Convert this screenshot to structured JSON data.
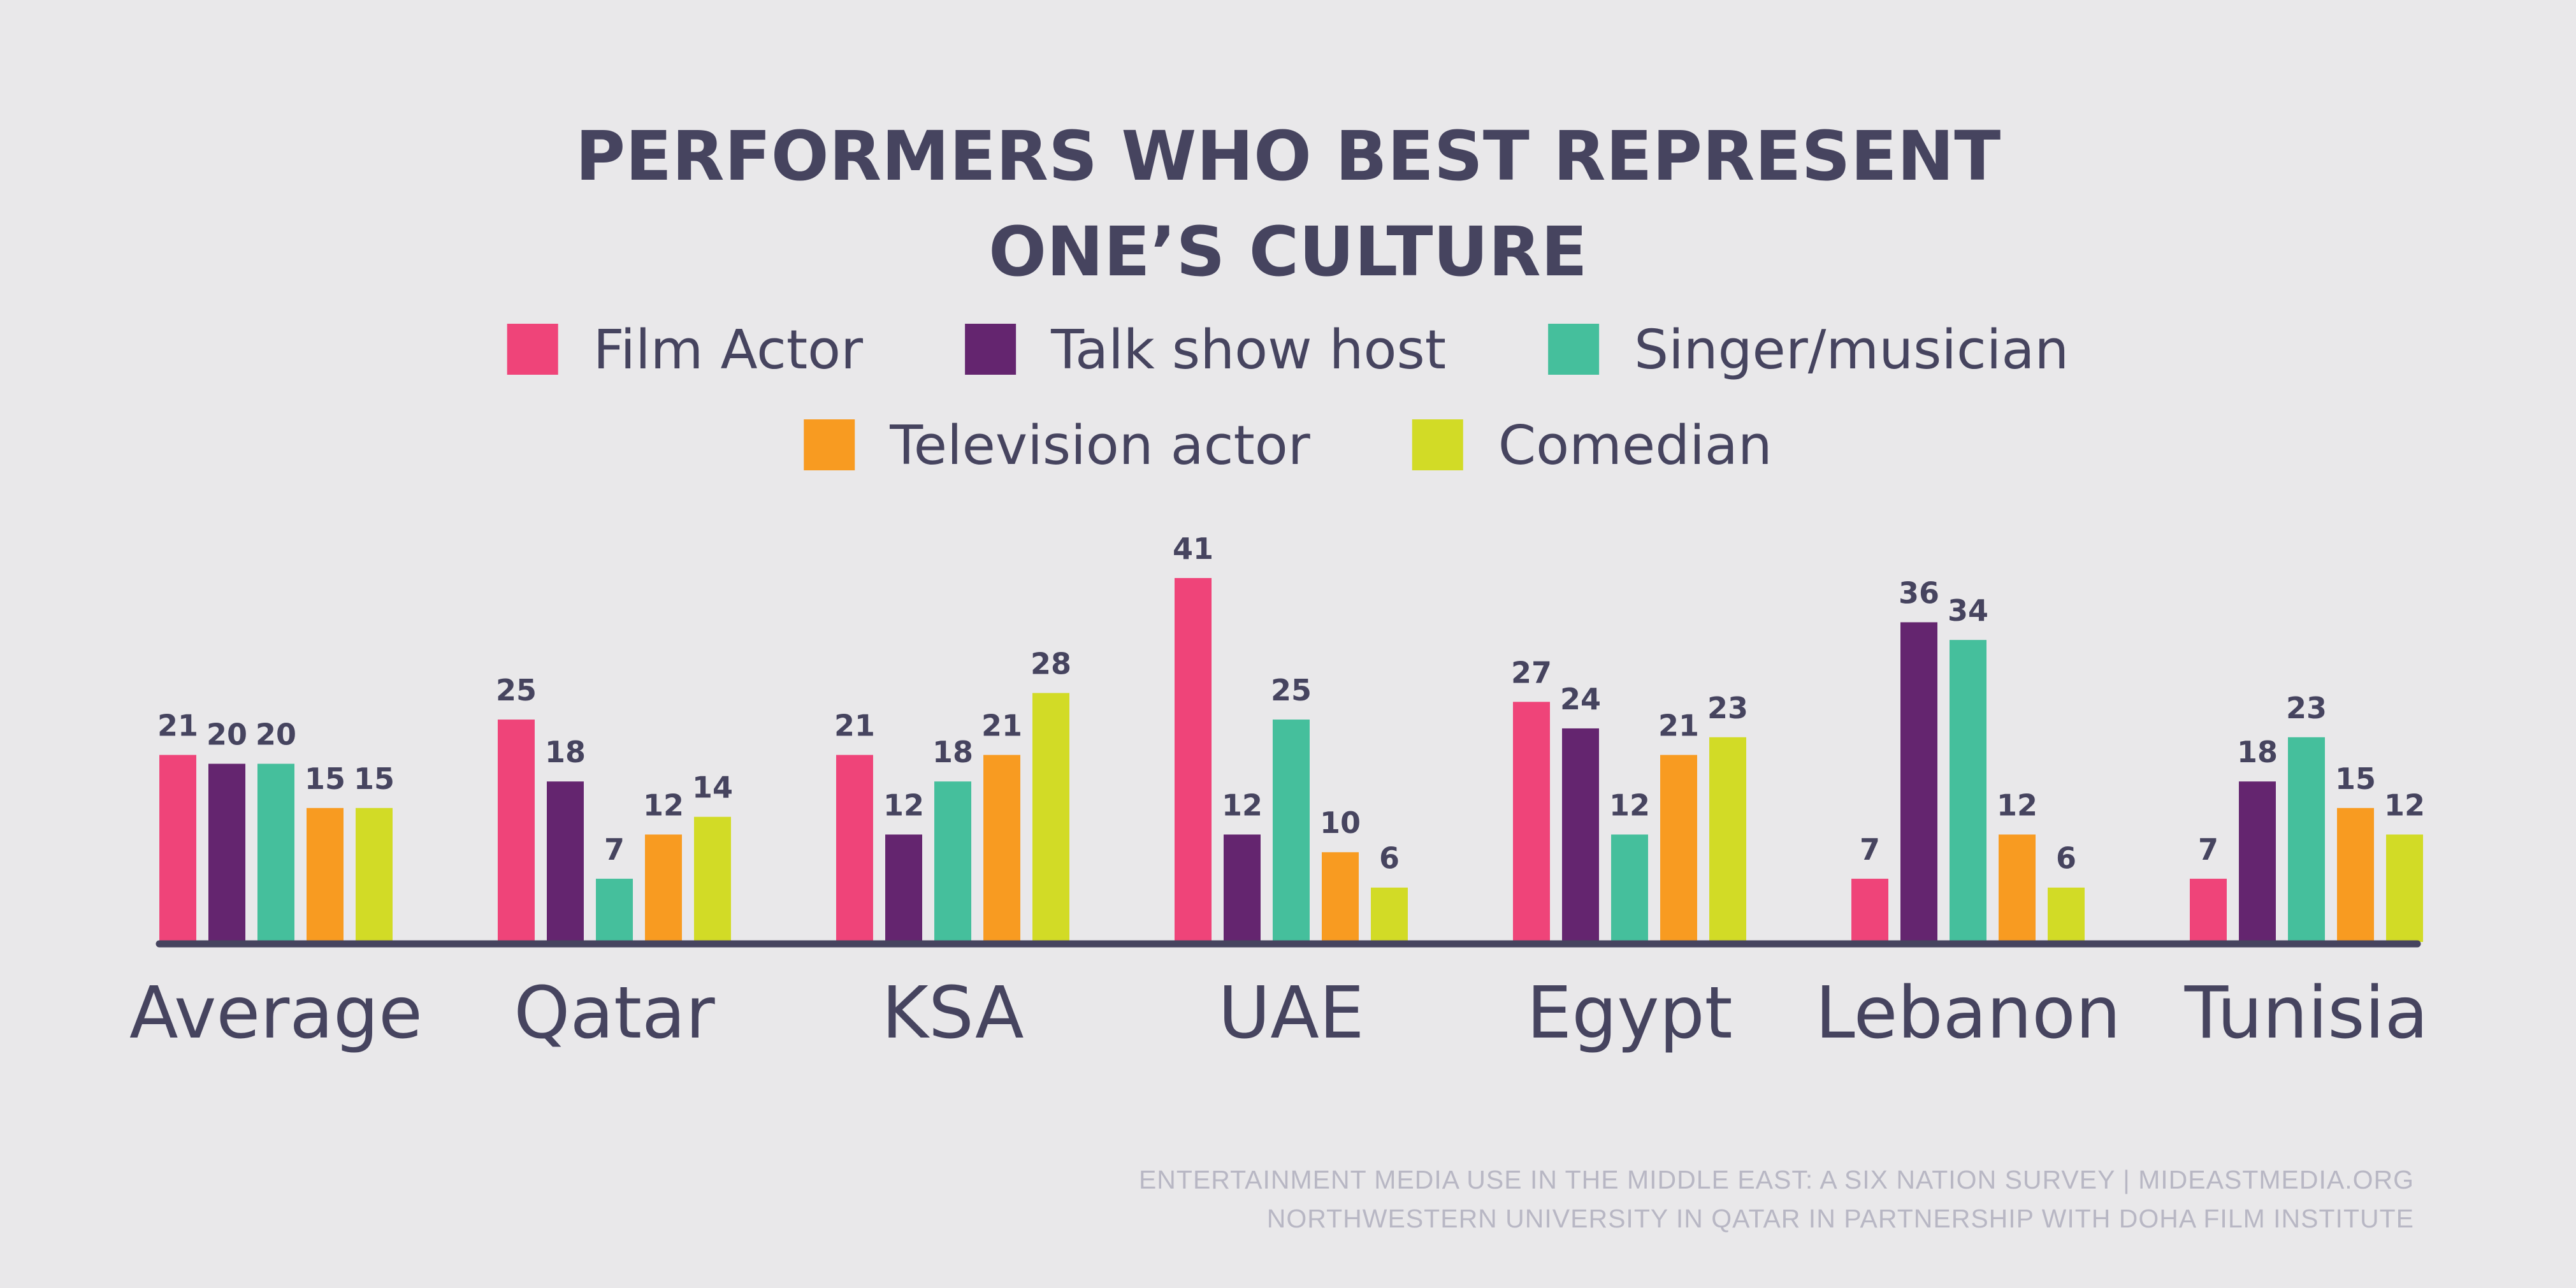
{
  "chart_data": {
    "type": "bar",
    "title_lines": [
      "PERFORMERS WHO BEST REPRESENT",
      "ONE’S CULTURE"
    ],
    "categories": [
      "Average",
      "Qatar",
      "KSA",
      "UAE",
      "Egypt",
      "Lebanon",
      "Tunisia"
    ],
    "series": [
      {
        "name": "Film Actor",
        "color": "#ef4479",
        "values": [
          21,
          25,
          21,
          41,
          27,
          7,
          7
        ]
      },
      {
        "name": "Talk show host",
        "color": "#64256f",
        "values": [
          20,
          18,
          12,
          12,
          24,
          36,
          18
        ]
      },
      {
        "name": "Singer/musician",
        "color": "#45bf9c",
        "values": [
          20,
          7,
          18,
          25,
          12,
          34,
          23
        ]
      },
      {
        "name": "Television actor",
        "color": "#f89b21",
        "values": [
          15,
          12,
          21,
          10,
          21,
          12,
          15
        ]
      },
      {
        "name": "Comedian",
        "color": "#d2db26",
        "values": [
          15,
          14,
          28,
          6,
          23,
          6,
          12
        ]
      }
    ],
    "legend_rows": [
      [
        0,
        1,
        2
      ],
      [
        3,
        4
      ]
    ],
    "ylim": [
      0,
      41
    ],
    "grid": false,
    "legend": "top-center",
    "axis_color": "#46445f",
    "source_lines": [
      "ENTERTAINMENT MEDIA USE IN THE MIDDLE EAST: A SIX NATION SURVEY | MIDEASTMEDIA.ORG",
      "NORTHWESTERN UNIVERSITY IN QATAR IN PARTNERSHIP WITH DOHA FILM INSTITUTE"
    ]
  }
}
